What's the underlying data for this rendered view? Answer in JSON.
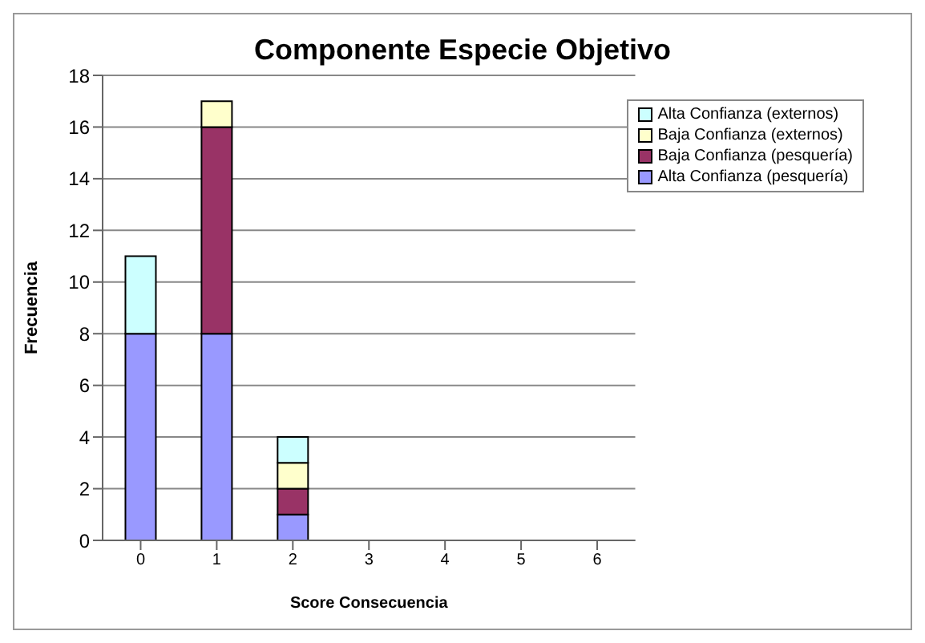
{
  "chart_data": {
    "type": "bar",
    "title": "Componente Especie Objetivo",
    "xlabel": "Score Consecuencia",
    "ylabel": "Frecuencia",
    "categories": [
      "0",
      "1",
      "2",
      "3",
      "4",
      "5",
      "6"
    ],
    "stacked": true,
    "series": [
      {
        "name": "Alta Confianza (pesquería)",
        "color": "#9999ff",
        "values": [
          8,
          8,
          1,
          0,
          0,
          0,
          0
        ]
      },
      {
        "name": "Baja Confianza (pesquería)",
        "color": "#993366",
        "values": [
          0,
          8,
          1,
          0,
          0,
          0,
          0
        ]
      },
      {
        "name": "Baja Confianza (externos)",
        "color": "#ffffcc",
        "values": [
          0,
          1,
          1,
          0,
          0,
          0,
          0
        ]
      },
      {
        "name": "Alta Confianza (externos)",
        "color": "#ccffff",
        "values": [
          3,
          0,
          1,
          0,
          0,
          0,
          0
        ]
      }
    ],
    "ylim": [
      0,
      18
    ],
    "yticks": [
      0,
      2,
      4,
      6,
      8,
      10,
      12,
      14,
      16,
      18
    ],
    "grid": "y",
    "legend": "top right"
  }
}
